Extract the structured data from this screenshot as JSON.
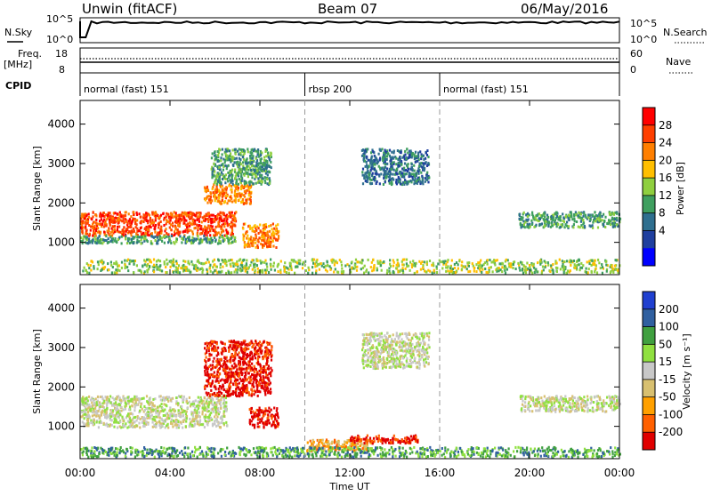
{
  "header": {
    "station": "Unwin (fitACF)",
    "beam": "Beam 07",
    "date": "06/May/2016"
  },
  "colors": {
    "power": [
      "#0000ff",
      "#1f3f9f",
      "#2f6f8f",
      "#3f9f5f",
      "#8fcf3f",
      "#ffbf00",
      "#ff7f00",
      "#ff3f00",
      "#ff0000"
    ],
    "velocity": [
      "#e00000",
      "#ff6000",
      "#ffa000",
      "#d8c070",
      "#c8c8c8",
      "#90e040",
      "#40a040",
      "#3060a0",
      "#2040d0"
    ],
    "grid_dash": "#999999"
  },
  "nsky_panel": {
    "left_label": "N.Sky",
    "right_label": "N.Search",
    "left_ticks": [
      "10^5",
      "10^0"
    ],
    "right_ticks": [
      "10^5",
      "10^0"
    ]
  },
  "freq_panel": {
    "left_label": "Freq.",
    "left_unit": "[MHz]",
    "right_label": "Nave",
    "left_ticks": [
      "18",
      "8"
    ],
    "right_ticks": [
      "60",
      "0"
    ]
  },
  "cpid_panel": {
    "label": "CPID",
    "modes": [
      {
        "text": "normal (fast) 151",
        "start_hour": 0
      },
      {
        "text": "rbsp 200",
        "start_hour": 10
      },
      {
        "text": "normal (fast) 151",
        "start_hour": 16
      }
    ]
  },
  "chart_data": [
    {
      "type": "heatmap",
      "name": "power",
      "ylabel": "Slant Range [km]",
      "colorbar_label": "Power [dB]",
      "colorbar_ticks": [
        "28",
        "24",
        "20",
        "16",
        "12",
        "8",
        "4"
      ],
      "ylim": [
        180,
        4600
      ],
      "yticks": [
        "4000",
        "3000",
        "2000",
        "1000"
      ],
      "xlim_hours": [
        0,
        24
      ],
      "echo_regions": [
        {
          "t0": 0.0,
          "t1": 6.9,
          "r0": 1200,
          "r1": 1800,
          "level": 28
        },
        {
          "t0": 0.0,
          "t1": 6.9,
          "r0": 1000,
          "r1": 1200,
          "level": 12
        },
        {
          "t0": 5.5,
          "t1": 7.6,
          "r0": 2000,
          "r1": 2500,
          "level": 24
        },
        {
          "t0": 7.2,
          "t1": 8.8,
          "r0": 900,
          "r1": 1500,
          "level": 24
        },
        {
          "t0": 5.8,
          "t1": 8.5,
          "r0": 2500,
          "r1": 3400,
          "level": 12
        },
        {
          "t0": 12.5,
          "t1": 15.5,
          "r0": 2500,
          "r1": 3400,
          "level": 8
        },
        {
          "t0": 19.5,
          "t1": 24.0,
          "r0": 1400,
          "r1": 1800,
          "level": 12
        },
        {
          "t0": 0.0,
          "t1": 24.0,
          "r0": 250,
          "r1": 600,
          "level": 16
        }
      ]
    },
    {
      "type": "heatmap",
      "name": "velocity",
      "ylabel": "Slant Range [km]",
      "colorbar_label": "Velocity [m s⁻¹]",
      "colorbar_ticks": [
        "200",
        "100",
        "50",
        "15",
        "-15",
        "-50",
        "-100",
        "-200"
      ],
      "ylim": [
        180,
        4600
      ],
      "yticks": [
        "4000",
        "3000",
        "2000",
        "1000"
      ],
      "xlabel": "Time UT",
      "xticks": [
        "00:00",
        "04:00",
        "08:00",
        "12:00",
        "16:00",
        "20:00",
        "00:00"
      ],
      "xlim_hours": [
        0,
        24
      ],
      "echo_regions": [
        {
          "t0": 0.0,
          "t1": 6.5,
          "r0": 1000,
          "r1": 1800,
          "level": 0
        },
        {
          "t0": 5.5,
          "t1": 8.5,
          "r0": 1800,
          "r1": 3200,
          "level": -200
        },
        {
          "t0": 7.5,
          "t1": 8.8,
          "r0": 1000,
          "r1": 1500,
          "level": -200
        },
        {
          "t0": 12.5,
          "t1": 15.5,
          "r0": 2500,
          "r1": 3400,
          "level": 0
        },
        {
          "t0": 19.5,
          "t1": 24.0,
          "r0": 1400,
          "r1": 1800,
          "level": 0
        },
        {
          "t0": 10.0,
          "t1": 13.0,
          "r0": 400,
          "r1": 700,
          "level": -50
        },
        {
          "t0": 12.0,
          "t1": 15.0,
          "r0": 600,
          "r1": 800,
          "level": -200
        },
        {
          "t0": 0.0,
          "t1": 24.0,
          "r0": 250,
          "r1": 500,
          "level": 50
        }
      ]
    }
  ]
}
